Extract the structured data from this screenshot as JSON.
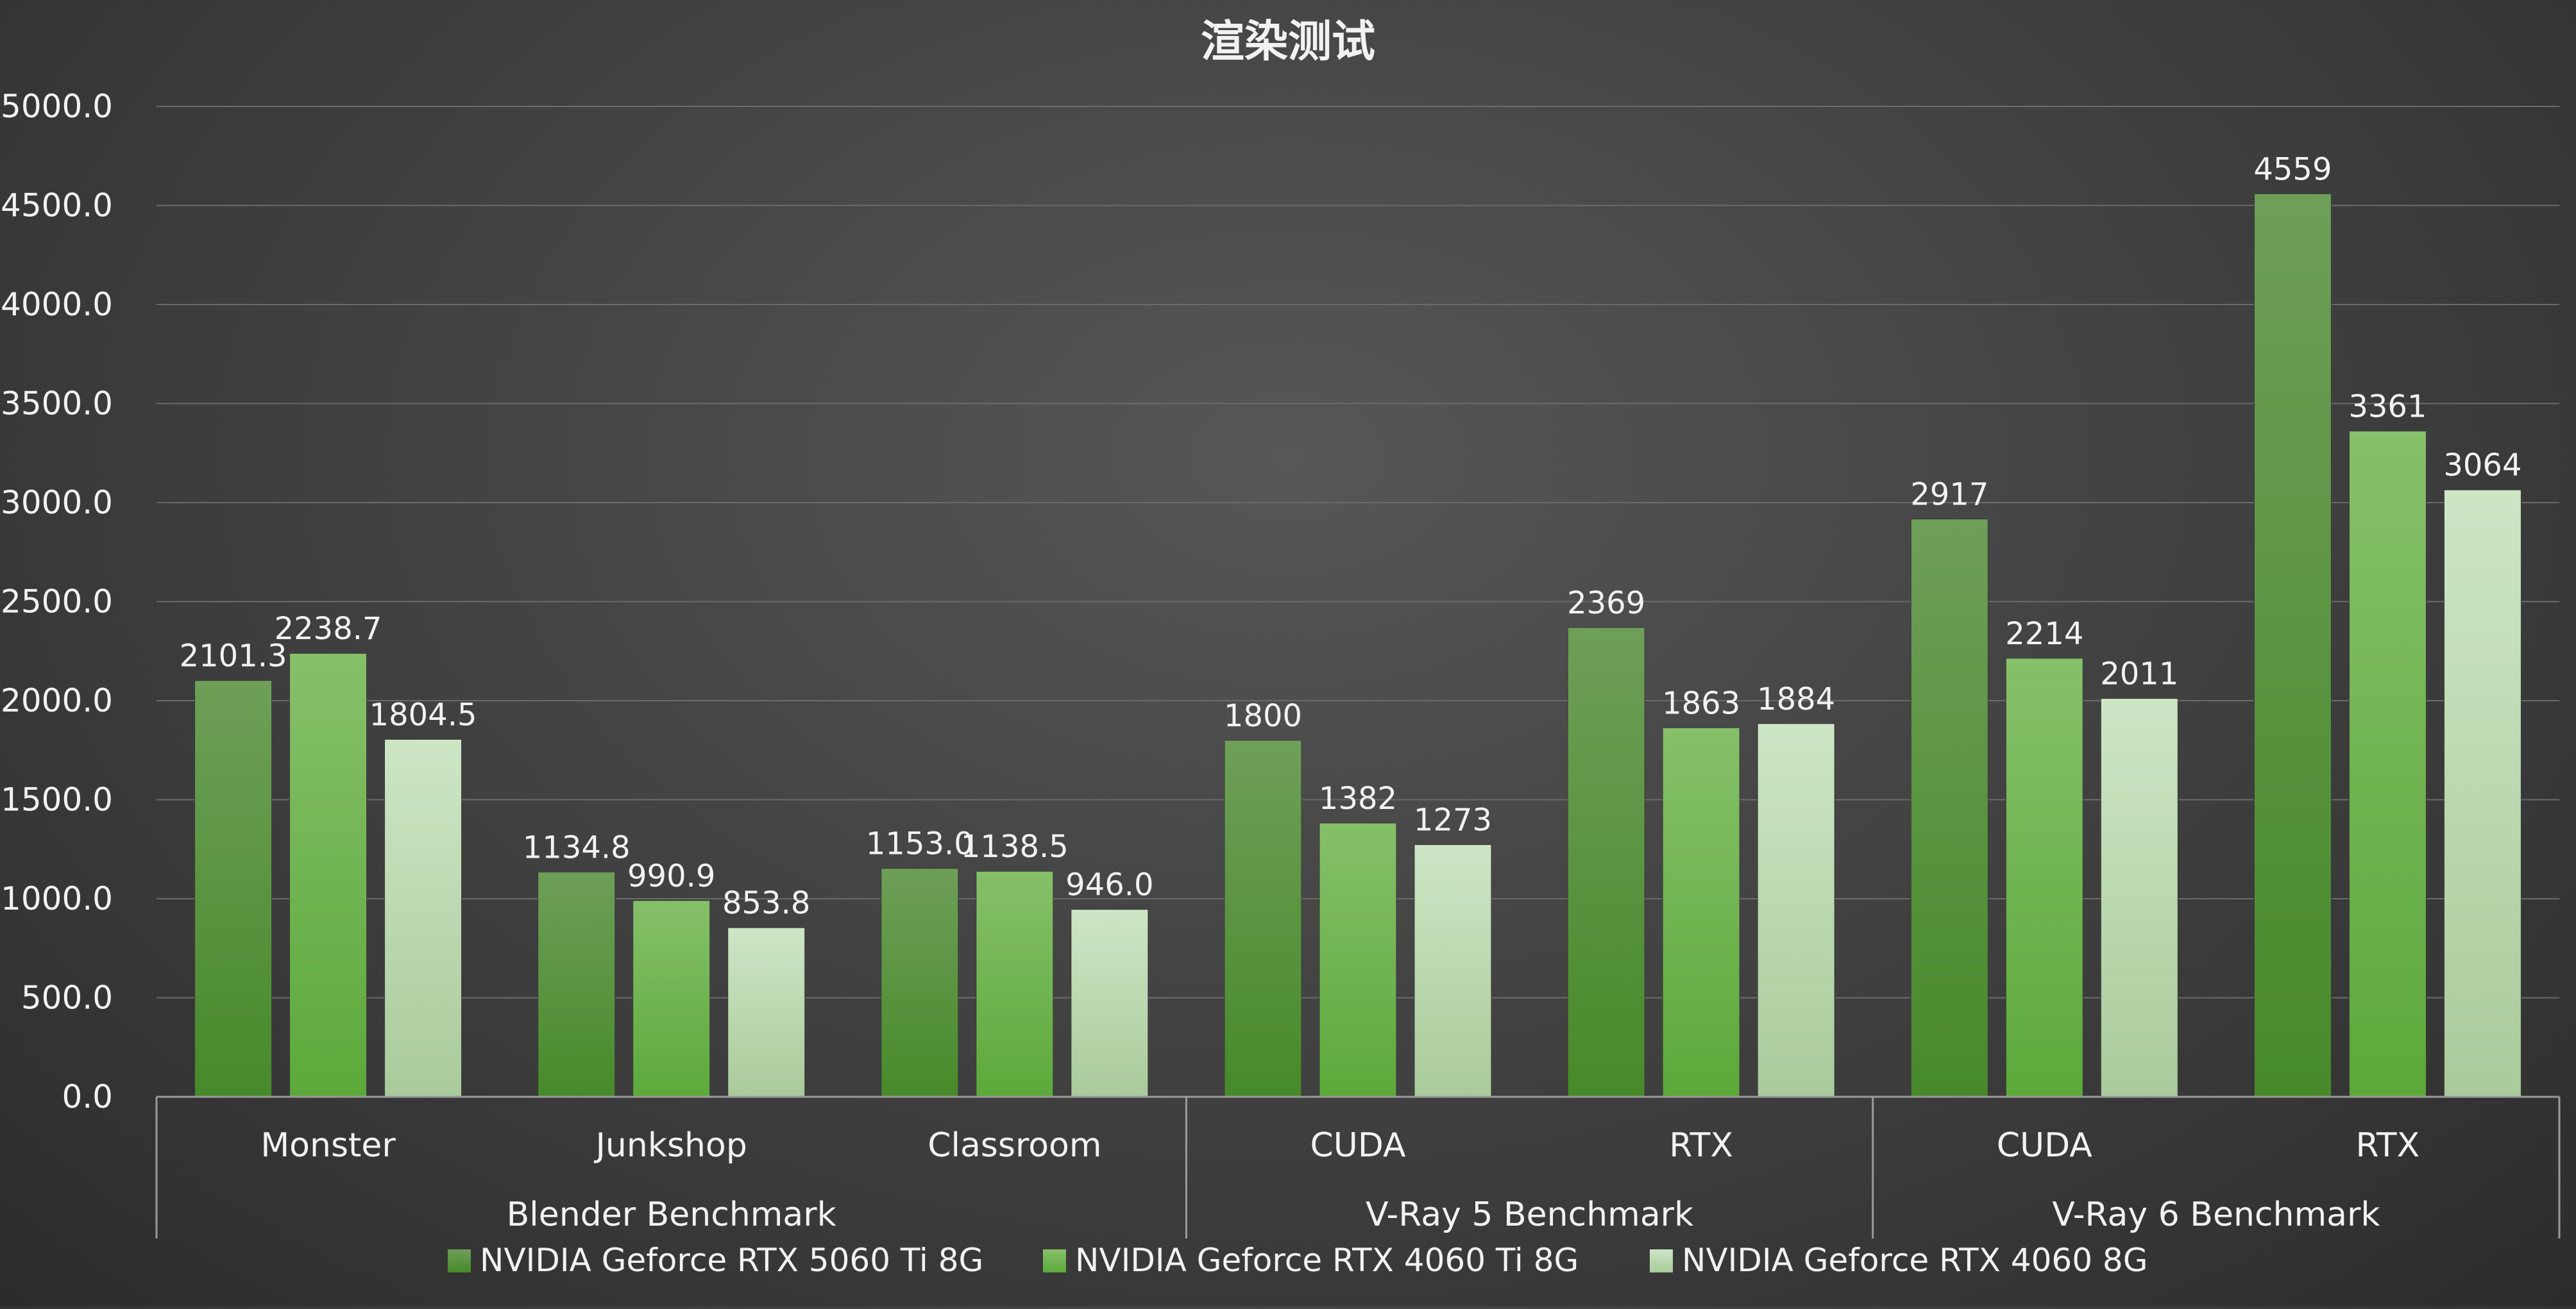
{
  "chart_data": {
    "type": "bar",
    "title": "渲染测试",
    "ylim": [
      0,
      5000
    ],
    "yticks": [
      "0.0",
      "500.0",
      "1000.0",
      "1500.0",
      "2000.0",
      "2500.0",
      "3000.0",
      "3500.0",
      "4000.0",
      "4500.0",
      "5000.0"
    ],
    "grid": true,
    "legend_position": "bottom",
    "groups": [
      {
        "label": "Blender Benchmark",
        "categories": [
          "Monster",
          "Junkshop",
          "Classroom"
        ]
      },
      {
        "label": "V-Ray 5 Benchmark",
        "categories": [
          "CUDA",
          "RTX"
        ]
      },
      {
        "label": "V-Ray 6 Benchmark",
        "categories": [
          "CUDA",
          "RTX"
        ]
      }
    ],
    "series": [
      {
        "name": "NVIDIA Geforce RTX 5060 Ti 8G",
        "values": [
          2101.3,
          1134.8,
          1153.0,
          1800,
          2369,
          2917,
          4559
        ],
        "labels": [
          "2101.3",
          "1134.8",
          "1153.0",
          "1800",
          "2369",
          "2917",
          "4559"
        ],
        "color": "#5a9a3c"
      },
      {
        "name": "NVIDIA Geforce RTX 4060 Ti 8G",
        "values": [
          2238.7,
          990.9,
          1138.5,
          1382,
          1863,
          2214,
          3361
        ],
        "labels": [
          "2238.7",
          "990.9",
          "1138.5",
          "1382",
          "1863",
          "2214",
          "3361"
        ],
        "color": "#72b84a"
      },
      {
        "name": "NVIDIA Geforce RTX 4060 8G",
        "values": [
          1804.5,
          853.8,
          946.0,
          1273,
          1884,
          2011,
          3064
        ],
        "labels": [
          "1804.5",
          "853.8",
          "946.0",
          "1273",
          "1884",
          "2011",
          "3064"
        ],
        "color": "#b8d8ae"
      }
    ]
  }
}
